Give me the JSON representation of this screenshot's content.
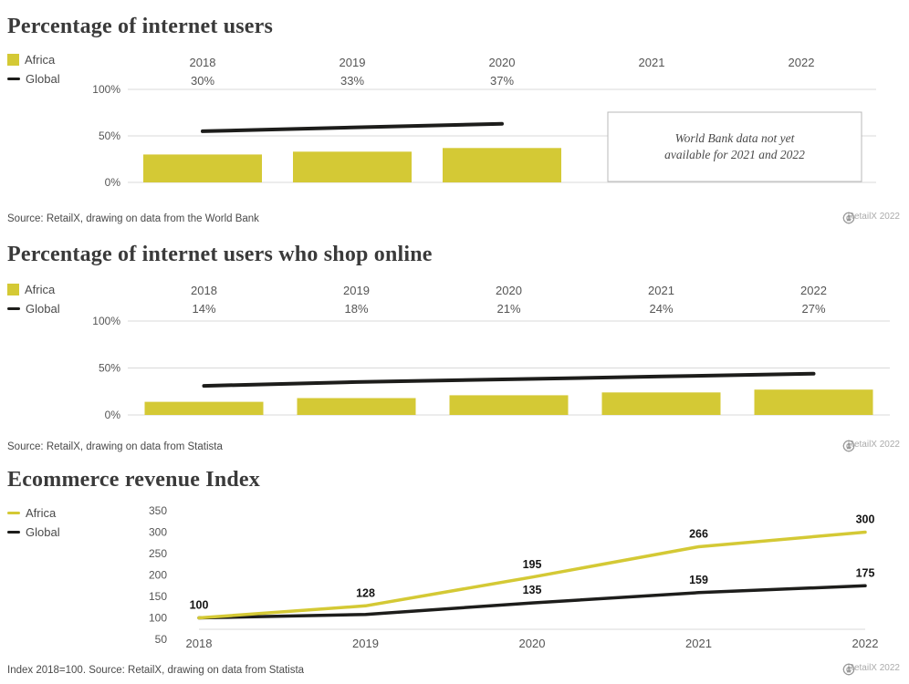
{
  "colors": {
    "africa": "#d4c935",
    "global": "#1d1d1b",
    "grid": "#d9d9d9",
    "axis_text": "#555555",
    "title": "#3a3a3a",
    "annotation_border": "#b8b8b8",
    "source": "#4a4a4a",
    "badge": "#9a9a9a"
  },
  "badge": {
    "label": "RetailX 2022",
    "icons": [
      "cc-icon",
      "attribution-icon",
      "nd-icon"
    ]
  },
  "chart_data": [
    {
      "type": "bar",
      "title": "Percentage of internet users",
      "categories": [
        "2018",
        "2019",
        "2020",
        "2021",
        "2022"
      ],
      "series": [
        {
          "name": "Africa",
          "kind": "bar",
          "color_key": "africa",
          "values": [
            30,
            33,
            37,
            null,
            null
          ],
          "value_labels": [
            "30%",
            "33%",
            "37%",
            "",
            ""
          ]
        },
        {
          "name": "Global",
          "kind": "line",
          "color_key": "global",
          "values": [
            55,
            59,
            63,
            null,
            null
          ]
        }
      ],
      "ylim": [
        0,
        100
      ],
      "yticks": [
        0,
        50,
        100
      ],
      "ytick_labels": [
        "0%",
        "50%",
        "100%"
      ],
      "legend": [
        {
          "label": "Africa",
          "swatch": "bar",
          "color_key": "africa"
        },
        {
          "label": "Global",
          "swatch": "line",
          "color_key": "global"
        }
      ],
      "annotation_lines": [
        "World Bank data not yet",
        "available for 2021 and 2022"
      ],
      "source": "Source: RetailX, drawing on data from the World Bank"
    },
    {
      "type": "bar",
      "title": "Percentage of internet users who shop online",
      "categories": [
        "2018",
        "2019",
        "2020",
        "2021",
        "2022"
      ],
      "series": [
        {
          "name": "Africa",
          "kind": "bar",
          "color_key": "africa",
          "values": [
            14,
            18,
            21,
            24,
            27
          ],
          "value_labels": [
            "14%",
            "18%",
            "21%",
            "24%",
            "27%"
          ]
        },
        {
          "name": "Global",
          "kind": "line",
          "color_key": "global",
          "values": [
            31,
            35,
            38,
            41,
            44
          ]
        }
      ],
      "ylim": [
        0,
        100
      ],
      "yticks": [
        0,
        50,
        100
      ],
      "ytick_labels": [
        "0%",
        "50%",
        "100%"
      ],
      "legend": [
        {
          "label": "Africa",
          "swatch": "bar",
          "color_key": "africa"
        },
        {
          "label": "Global",
          "swatch": "line",
          "color_key": "global"
        }
      ],
      "source": "Source: RetailX, drawing on data from Statista"
    },
    {
      "type": "line",
      "title": "Ecommerce revenue Index",
      "categories": [
        "2018",
        "2019",
        "2020",
        "2021",
        "2022"
      ],
      "series": [
        {
          "name": "Africa",
          "kind": "line",
          "color_key": "africa",
          "values": [
            100,
            128,
            195,
            266,
            300
          ],
          "point_labels": [
            "",
            "128",
            "195",
            "266",
            "300"
          ]
        },
        {
          "name": "Global",
          "kind": "line",
          "color_key": "global",
          "values": [
            100,
            108,
            135,
            159,
            175
          ],
          "point_labels": [
            "100",
            "",
            "135",
            "159",
            "175"
          ]
        }
      ],
      "ylim": [
        50,
        350
      ],
      "yticks": [
        50,
        100,
        150,
        200,
        250,
        300,
        350
      ],
      "ytick_labels": [
        "50",
        "100",
        "150",
        "200",
        "250",
        "300",
        "350"
      ],
      "legend": [
        {
          "label": "Africa",
          "swatch": "line",
          "color_key": "africa"
        },
        {
          "label": "Global",
          "swatch": "line",
          "color_key": "global"
        }
      ],
      "note": "Index 2018=100",
      "source": "Index 2018=100. Source: RetailX, drawing on data from Statista"
    }
  ]
}
